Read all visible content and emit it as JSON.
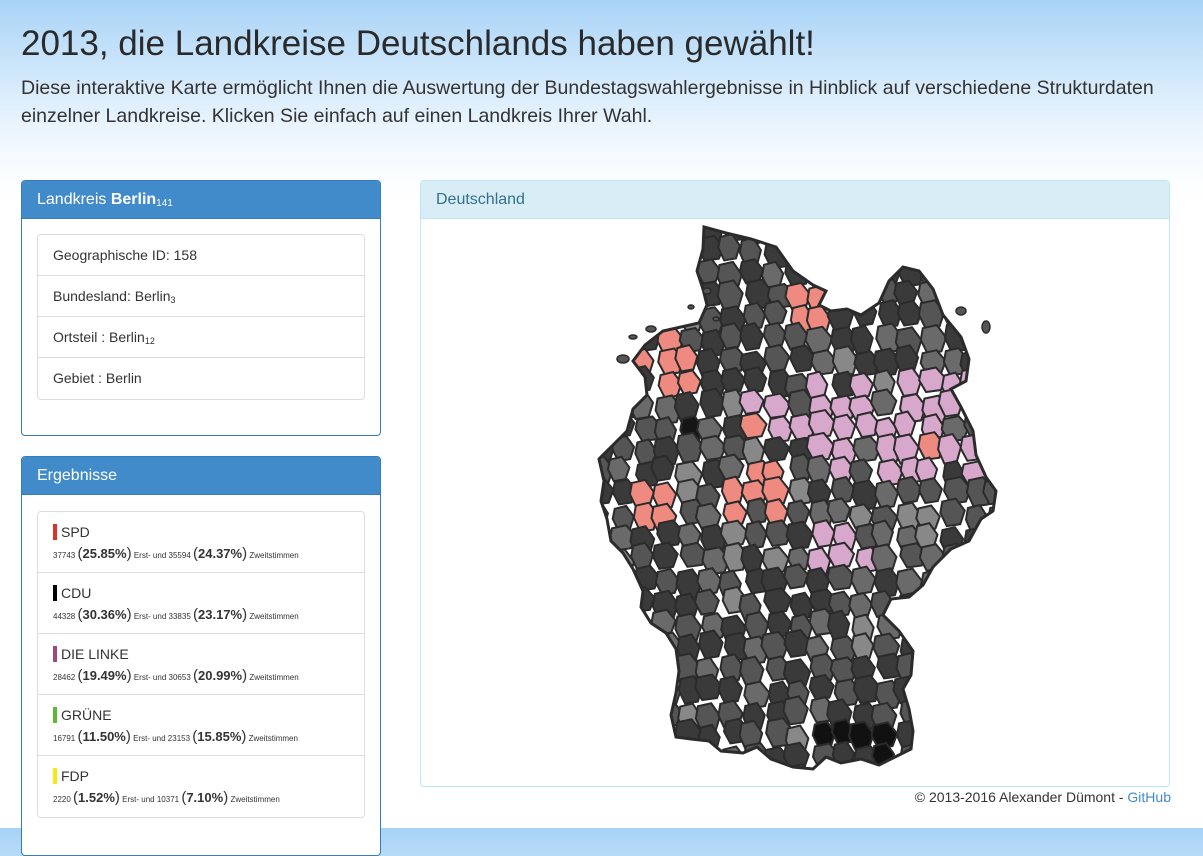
{
  "header": {
    "title": "2013, die Landkreise Deutschlands haben gewählt!",
    "subtitle": "Diese interaktive Karte ermöglicht Ihnen die Auswertung der Bundestagswahlergebnisse in Hinblick auf verschiedene Strukturdaten einzelner Landkreise. Klicken Sie einfach auf einen Landkreis Ihrer Wahl."
  },
  "landkreis": {
    "heading_prefix": "Landkreis",
    "name": "Berlin",
    "name_sub": "141",
    "items": [
      {
        "label": "Geographische ID: 158",
        "sub": ""
      },
      {
        "label": "Bundesland: Berlin",
        "sub": "3"
      },
      {
        "label": "Ortsteil : Berlin",
        "sub": "12"
      },
      {
        "label": "Gebiet : Berlin",
        "sub": ""
      }
    ]
  },
  "ergebnisse": {
    "heading": "Ergebnisse",
    "erst_label": "Erst- und",
    "zweit_label": "Zweitstimmen",
    "parties": [
      {
        "name": "SPD",
        "color": "#d9332b",
        "erst_count": "37743",
        "erst_pct": "25.85%",
        "zweit_count": "35594",
        "zweit_pct": "24.37%"
      },
      {
        "name": "CDU",
        "color": "#000000",
        "erst_count": "44328",
        "erst_pct": "30.36%",
        "zweit_count": "33835",
        "zweit_pct": "23.17%"
      },
      {
        "name": "DIE LINKE",
        "color": "#a0467f",
        "erst_count": "28462",
        "erst_pct": "19.49%",
        "zweit_count": "30653",
        "zweit_pct": "20.99%"
      },
      {
        "name": "GRÜNE",
        "color": "#5fb82e",
        "erst_count": "16791",
        "erst_pct": "11.50%",
        "zweit_count": "23153",
        "zweit_pct": "15.85%"
      },
      {
        "name": "FDP",
        "color": "#f5eb14",
        "erst_count": "2220",
        "erst_pct": "1.52%",
        "zweit_count": "10371",
        "zweit_pct": "7.10%"
      }
    ]
  },
  "map": {
    "heading": "Deutschland",
    "colors": {
      "cdu_dark": "#3a3a3a",
      "cdu_mid": "#6a6a6a",
      "spd": "#ee8a80",
      "linke": "#d8a8cc",
      "border": "#2b2b2b"
    }
  },
  "footer": {
    "copyright": "© 2013-2016 Alexander Dümont - ",
    "link": "GitHub"
  }
}
